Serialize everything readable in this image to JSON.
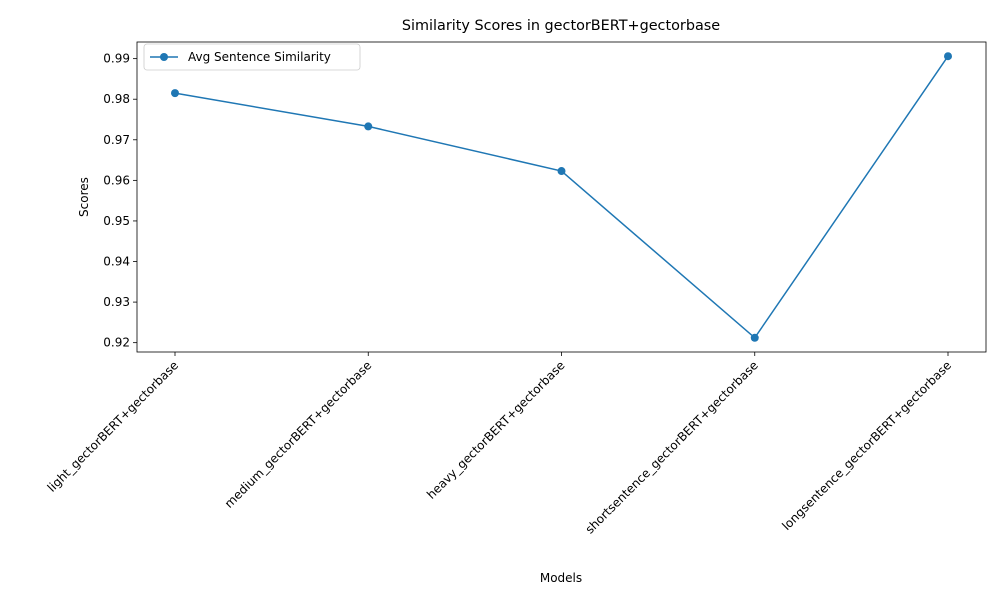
{
  "chart_data": {
    "type": "line",
    "title": "Similarity Scores in gectorBERT+gectorbase",
    "xlabel": "Models",
    "ylabel": "Scores",
    "categories": [
      "light_gectorBERT+gectorbase",
      "medium_gectorBERT+gectorbase",
      "heavy_gectorBERT+gectorbase",
      "shortsentence_gectorBERT+gectorbase",
      "longsentence_gectorBERT+gectorbase"
    ],
    "series": [
      {
        "name": "Avg Sentence Similarity",
        "values": [
          0.9815,
          0.9733,
          0.9623,
          0.9212,
          0.9906
        ],
        "color": "#1f77b4",
        "marker": "circle"
      }
    ],
    "ylim": [
      0.9177,
      0.9941
    ],
    "yticks": [
      "0.92",
      "0.93",
      "0.94",
      "0.95",
      "0.96",
      "0.97",
      "0.98",
      "0.99"
    ],
    "grid": false,
    "legend": "top-left"
  }
}
